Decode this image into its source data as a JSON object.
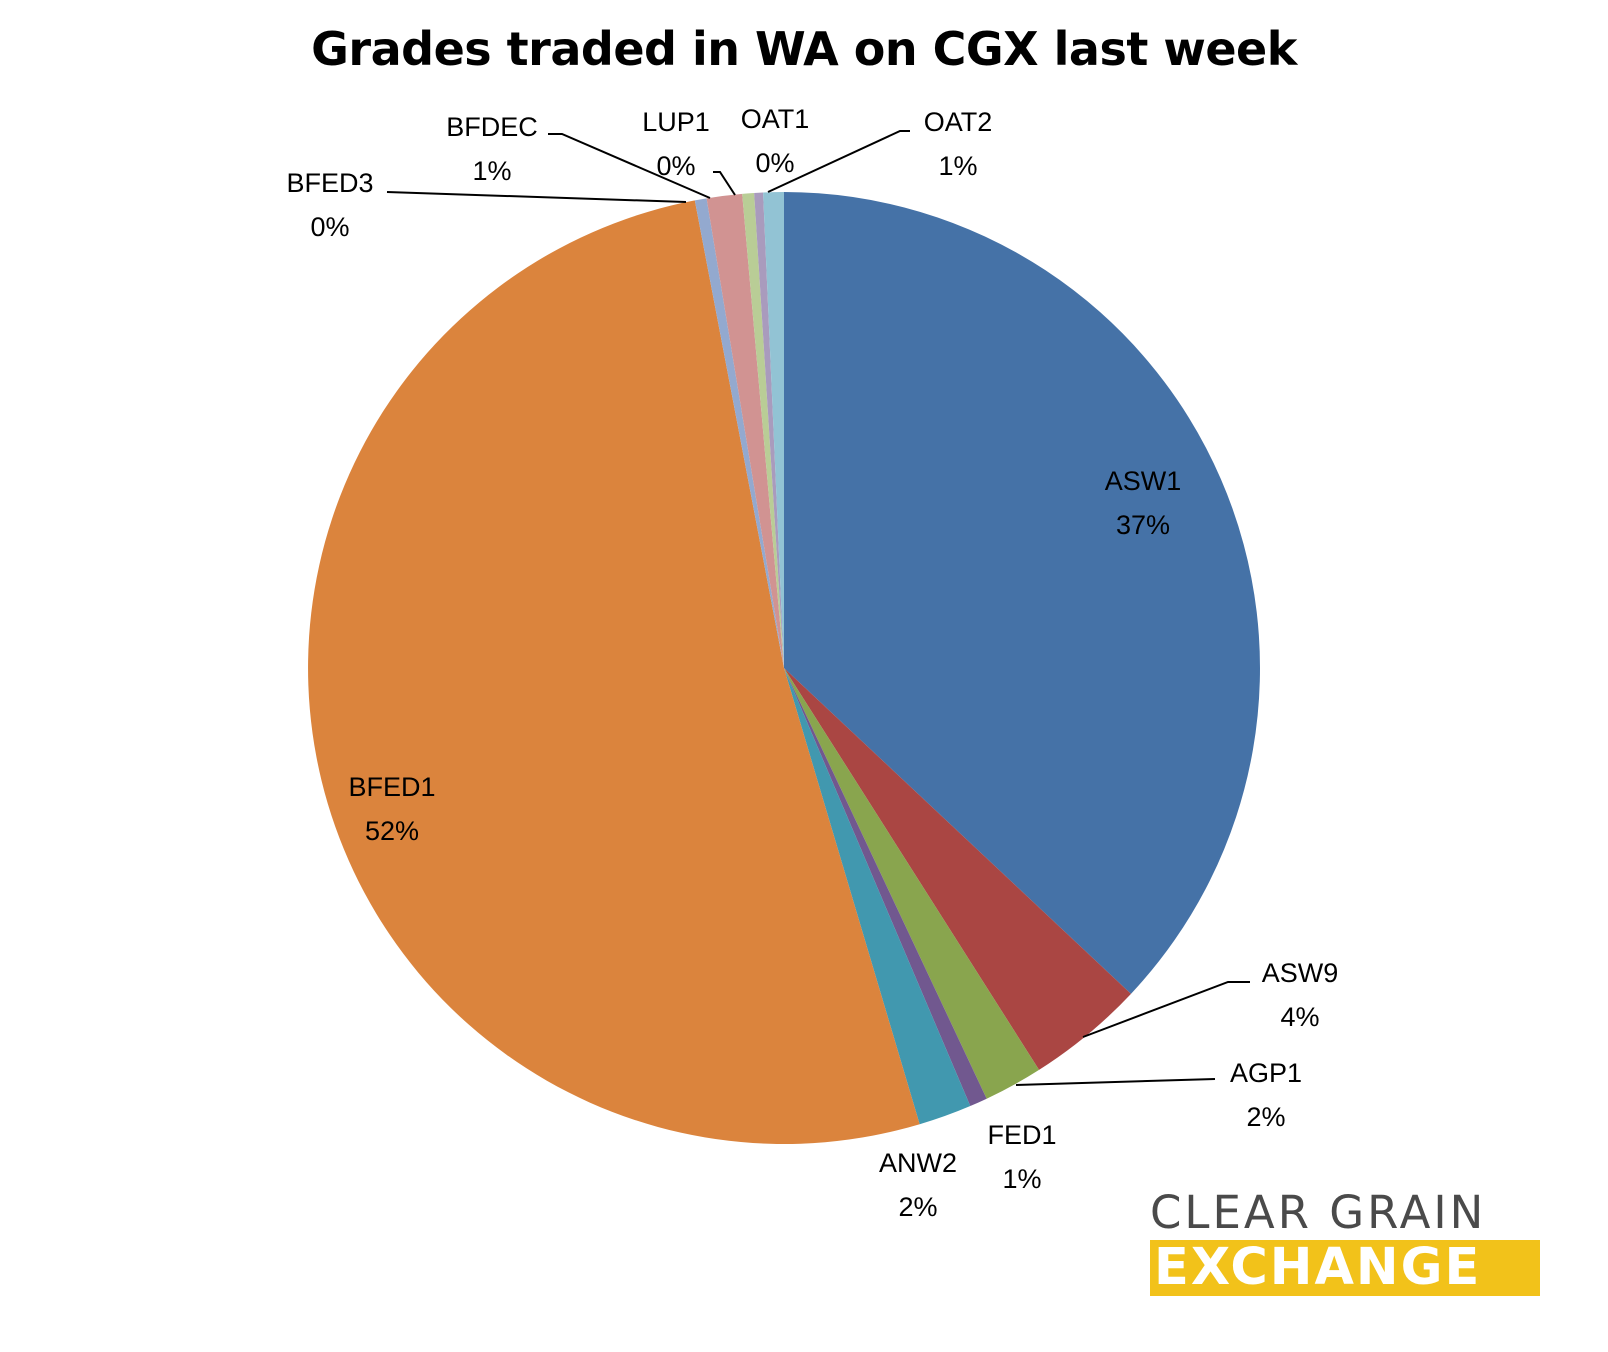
{
  "chart_data": {
    "type": "pie",
    "title": "Grades traded in WA on CGX last week",
    "start_angle_deg": 0,
    "direction": "clockwise",
    "slices": [
      {
        "label": "ASW1",
        "value": 37,
        "pct": "37%",
        "color": "#4572a7"
      },
      {
        "label": "ASW9",
        "value": 4,
        "pct": "4%",
        "color": "#aa4643"
      },
      {
        "label": "AGP1",
        "value": 2,
        "pct": "2%",
        "color": "#89a54e"
      },
      {
        "label": "FED1",
        "value": 0.6,
        "pct": "1%",
        "color": "#71588f"
      },
      {
        "label": "ANW2",
        "value": 1.8,
        "pct": "2%",
        "color": "#4198af"
      },
      {
        "label": "BFED1",
        "value": 51.6,
        "pct": "52%",
        "color": "#db843d"
      },
      {
        "label": "BFED3",
        "value": 0.4,
        "pct": "0%",
        "color": "#93a9cf"
      },
      {
        "label": "BFDEC",
        "value": 1.2,
        "pct": "1%",
        "color": "#d19392"
      },
      {
        "label": "LUP1",
        "value": 0.4,
        "pct": "0%",
        "color": "#b9cd96"
      },
      {
        "label": "OAT1",
        "value": 0.3,
        "pct": "0%",
        "color": "#a99bbd"
      },
      {
        "label": "OAT2",
        "value": 0.7,
        "pct": "1%",
        "color": "#92c3d4"
      }
    ]
  },
  "logo": {
    "line1": "CLEAR GRAIN",
    "line2": "EXCHANGE",
    "color_text": "#4a4a4a",
    "color_band": "#f2c21a"
  }
}
